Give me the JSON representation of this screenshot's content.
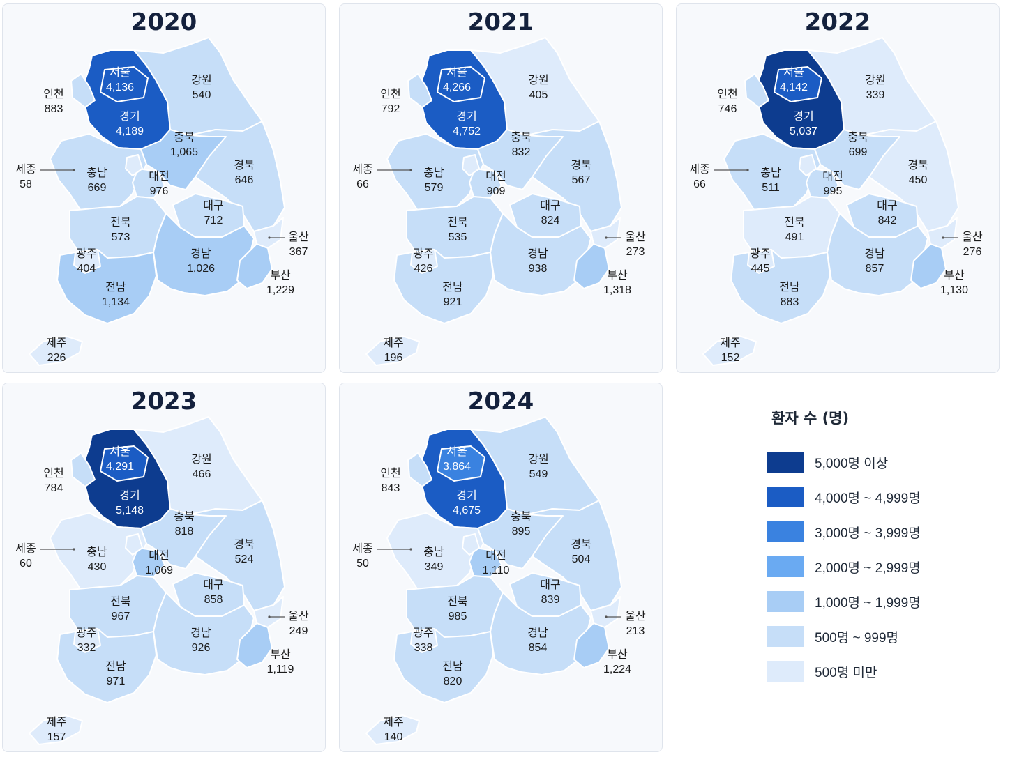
{
  "legend": {
    "title": "환자 수 (명)",
    "items": [
      {
        "label": "5,000명 이상",
        "color": "#0d3c8f"
      },
      {
        "label": "4,000명 ~ 4,999명",
        "color": "#1b5cc4"
      },
      {
        "label": "3,000명 ~ 3,999명",
        "color": "#3a82e0"
      },
      {
        "label": "2,000명 ~ 2,999명",
        "color": "#6aaaf2"
      },
      {
        "label": "1,000명 ~ 1,999명",
        "color": "#a8cdf5"
      },
      {
        "label": "500명 ~ 999명",
        "color": "#c6def8"
      },
      {
        "label": "500명 미만",
        "color": "#deebfb"
      }
    ]
  },
  "years": [
    {
      "year": "2020",
      "regions": {
        "seoul": {
          "name": "서울",
          "value": "4,136",
          "n": 4136
        },
        "gyeonggi": {
          "name": "경기",
          "value": "4,189",
          "n": 4189
        },
        "incheon": {
          "name": "인천",
          "value": "883",
          "n": 883
        },
        "gangwon": {
          "name": "강원",
          "value": "540",
          "n": 540
        },
        "chungbuk": {
          "name": "충북",
          "value": "1,065",
          "n": 1065
        },
        "chungnam": {
          "name": "충남",
          "value": "669",
          "n": 669
        },
        "sejong": {
          "name": "세종",
          "value": "58",
          "n": 58
        },
        "daejeon": {
          "name": "대전",
          "value": "976",
          "n": 976
        },
        "gyeongbuk": {
          "name": "경북",
          "value": "646",
          "n": 646
        },
        "daegu": {
          "name": "대구",
          "value": "712",
          "n": 712
        },
        "jeonbuk": {
          "name": "전북",
          "value": "573",
          "n": 573
        },
        "ulsan": {
          "name": "울산",
          "value": "367",
          "n": 367
        },
        "gwangju": {
          "name": "광주",
          "value": "404",
          "n": 404
        },
        "gyeongnam": {
          "name": "경남",
          "value": "1,026",
          "n": 1026
        },
        "busan": {
          "name": "부산",
          "value": "1,229",
          "n": 1229
        },
        "jeonnam": {
          "name": "전남",
          "value": "1,134",
          "n": 1134
        },
        "jeju": {
          "name": "제주",
          "value": "226",
          "n": 226
        }
      }
    },
    {
      "year": "2021",
      "regions": {
        "seoul": {
          "name": "서울",
          "value": "4,266",
          "n": 4266
        },
        "gyeonggi": {
          "name": "경기",
          "value": "4,752",
          "n": 4752
        },
        "incheon": {
          "name": "인천",
          "value": "792",
          "n": 792
        },
        "gangwon": {
          "name": "강원",
          "value": "405",
          "n": 405
        },
        "chungbuk": {
          "name": "충북",
          "value": "832",
          "n": 832
        },
        "chungnam": {
          "name": "충남",
          "value": "579",
          "n": 579
        },
        "sejong": {
          "name": "세종",
          "value": "66",
          "n": 66
        },
        "daejeon": {
          "name": "대전",
          "value": "909",
          "n": 909
        },
        "gyeongbuk": {
          "name": "경북",
          "value": "567",
          "n": 567
        },
        "daegu": {
          "name": "대구",
          "value": "824",
          "n": 824
        },
        "jeonbuk": {
          "name": "전북",
          "value": "535",
          "n": 535
        },
        "ulsan": {
          "name": "울산",
          "value": "273",
          "n": 273
        },
        "gwangju": {
          "name": "광주",
          "value": "426",
          "n": 426
        },
        "gyeongnam": {
          "name": "경남",
          "value": "938",
          "n": 938
        },
        "busan": {
          "name": "부산",
          "value": "1,318",
          "n": 1318
        },
        "jeonnam": {
          "name": "전남",
          "value": "921",
          "n": 921
        },
        "jeju": {
          "name": "제주",
          "value": "196",
          "n": 196
        }
      }
    },
    {
      "year": "2022",
      "regions": {
        "seoul": {
          "name": "서울",
          "value": "4,142",
          "n": 4142
        },
        "gyeonggi": {
          "name": "경기",
          "value": "5,037",
          "n": 5037
        },
        "incheon": {
          "name": "인천",
          "value": "746",
          "n": 746
        },
        "gangwon": {
          "name": "강원",
          "value": "339",
          "n": 339
        },
        "chungbuk": {
          "name": "충북",
          "value": "699",
          "n": 699
        },
        "chungnam": {
          "name": "충남",
          "value": "511",
          "n": 511
        },
        "sejong": {
          "name": "세종",
          "value": "66",
          "n": 66
        },
        "daejeon": {
          "name": "대전",
          "value": "995",
          "n": 995
        },
        "gyeongbuk": {
          "name": "경북",
          "value": "450",
          "n": 450
        },
        "daegu": {
          "name": "대구",
          "value": "842",
          "n": 842
        },
        "jeonbuk": {
          "name": "전북",
          "value": "491",
          "n": 491
        },
        "ulsan": {
          "name": "울산",
          "value": "276",
          "n": 276
        },
        "gwangju": {
          "name": "광주",
          "value": "445",
          "n": 445
        },
        "gyeongnam": {
          "name": "경남",
          "value": "857",
          "n": 857
        },
        "busan": {
          "name": "부산",
          "value": "1,130",
          "n": 1130
        },
        "jeonnam": {
          "name": "전남",
          "value": "883",
          "n": 883
        },
        "jeju": {
          "name": "제주",
          "value": "152",
          "n": 152
        }
      }
    },
    {
      "year": "2023",
      "regions": {
        "seoul": {
          "name": "서울",
          "value": "4,291",
          "n": 4291
        },
        "gyeonggi": {
          "name": "경기",
          "value": "5,148",
          "n": 5148
        },
        "incheon": {
          "name": "인천",
          "value": "784",
          "n": 784
        },
        "gangwon": {
          "name": "강원",
          "value": "466",
          "n": 466
        },
        "chungbuk": {
          "name": "충북",
          "value": "818",
          "n": 818
        },
        "chungnam": {
          "name": "충남",
          "value": "430",
          "n": 430
        },
        "sejong": {
          "name": "세종",
          "value": "60",
          "n": 60
        },
        "daejeon": {
          "name": "대전",
          "value": "1,069",
          "n": 1069
        },
        "gyeongbuk": {
          "name": "경북",
          "value": "524",
          "n": 524
        },
        "daegu": {
          "name": "대구",
          "value": "858",
          "n": 858
        },
        "jeonbuk": {
          "name": "전북",
          "value": "967",
          "n": 967
        },
        "ulsan": {
          "name": "울산",
          "value": "249",
          "n": 249
        },
        "gwangju": {
          "name": "광주",
          "value": "332",
          "n": 332
        },
        "gyeongnam": {
          "name": "경남",
          "value": "926",
          "n": 926
        },
        "busan": {
          "name": "부산",
          "value": "1,119",
          "n": 1119
        },
        "jeonnam": {
          "name": "전남",
          "value": "971",
          "n": 971
        },
        "jeju": {
          "name": "제주",
          "value": "157",
          "n": 157
        }
      }
    },
    {
      "year": "2024",
      "regions": {
        "seoul": {
          "name": "서울",
          "value": "3,864",
          "n": 3864
        },
        "gyeonggi": {
          "name": "경기",
          "value": "4,675",
          "n": 4675
        },
        "incheon": {
          "name": "인천",
          "value": "843",
          "n": 843
        },
        "gangwon": {
          "name": "강원",
          "value": "549",
          "n": 549
        },
        "chungbuk": {
          "name": "충북",
          "value": "895",
          "n": 895
        },
        "chungnam": {
          "name": "충남",
          "value": "349",
          "n": 349
        },
        "sejong": {
          "name": "세종",
          "value": "50",
          "n": 50
        },
        "daejeon": {
          "name": "대전",
          "value": "1,110",
          "n": 1110
        },
        "gyeongbuk": {
          "name": "경북",
          "value": "504",
          "n": 504
        },
        "daegu": {
          "name": "대구",
          "value": "839",
          "n": 839
        },
        "jeonbuk": {
          "name": "전북",
          "value": "985",
          "n": 985
        },
        "ulsan": {
          "name": "울산",
          "value": "213",
          "n": 213
        },
        "gwangju": {
          "name": "광주",
          "value": "338",
          "n": 338
        },
        "gyeongnam": {
          "name": "경남",
          "value": "854",
          "n": 854
        },
        "busan": {
          "name": "부산",
          "value": "1,224",
          "n": 1224
        },
        "jeonnam": {
          "name": "전남",
          "value": "820",
          "n": 820
        },
        "jeju": {
          "name": "제주",
          "value": "140",
          "n": 140
        }
      }
    }
  ]
}
